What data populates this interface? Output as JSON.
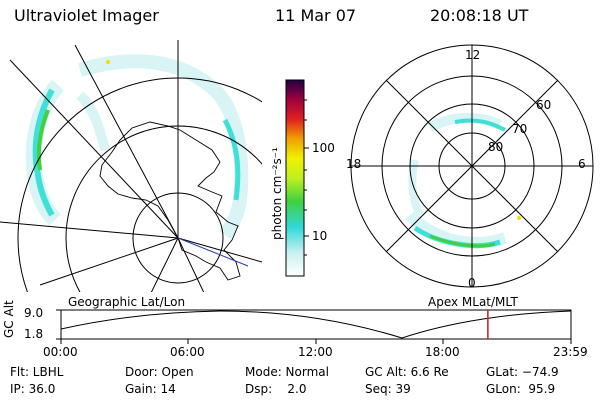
{
  "header": {
    "title": "Ultraviolet Imager",
    "date": "11 Mar 07",
    "time": "20:08:18 UT"
  },
  "left_panel": {
    "label": "Geographic Lat/Lon"
  },
  "right_panel": {
    "label": "Apex  MLat/MLT",
    "mlt_ticks": [
      "12",
      "18",
      "6",
      "0"
    ],
    "lat_ticks": [
      "60",
      "70",
      "80"
    ]
  },
  "colorbar": {
    "label": "photon cm⁻²s⁻¹",
    "ticks": [
      "100",
      "10"
    ],
    "scale": "log"
  },
  "timeline": {
    "ylabel": "GC Alt",
    "yticks": [
      "9.0",
      "1.8"
    ],
    "xticks": [
      "00:00",
      "06:00",
      "12:00",
      "18:00",
      "23:59"
    ],
    "current_time_fraction": 0.837,
    "marker_color": "#c02020"
  },
  "params": {
    "flt": "Flt: LBHL",
    "door": "Door: Open",
    "mode": "Mode: Normal",
    "gc_alt": "GC Alt: 6.6 Re",
    "glat": "GLat: −74.9",
    "ip": "IP: 36.0",
    "gain": "Gain: 14",
    "dsp": "Dsp:    2.0",
    "seq": "Seq: 39",
    "glon": "GLon:  95.9"
  },
  "colors": {
    "aurora_low": "#d8f4f4",
    "aurora_mid": "#40e0d8",
    "aurora_high": "#40d040"
  }
}
